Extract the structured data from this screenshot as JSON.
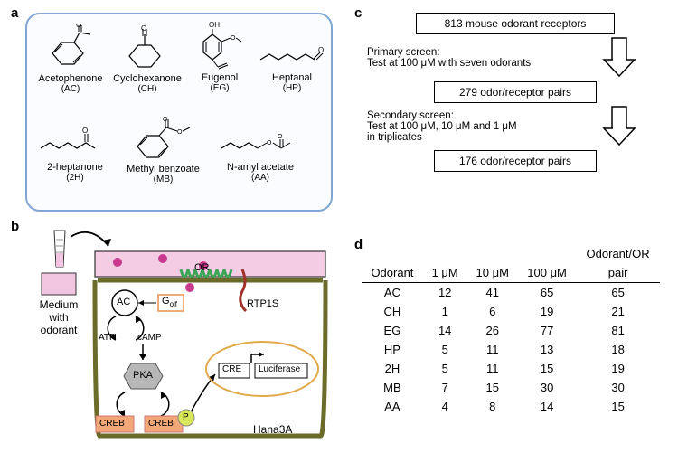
{
  "labels": {
    "a": "a",
    "b": "b",
    "c": "c",
    "d": "d"
  },
  "panelA": {
    "border_color": "#7fa6d4",
    "molecules": [
      {
        "name": "Acetophenone",
        "abbr": "(AC)"
      },
      {
        "name": "Cyclohexanone",
        "abbr": "(CH)"
      },
      {
        "name": "Eugenol",
        "abbr": "(EG)"
      },
      {
        "name": "Heptanal",
        "abbr": "(HP)"
      },
      {
        "name": "2-heptanone",
        "abbr": "(2H)"
      },
      {
        "name": "Methyl benzoate",
        "abbr": "(MB)"
      },
      {
        "name": "N-amyl acetate",
        "abbr": "(AA)"
      }
    ]
  },
  "panelB": {
    "medium_label_l1": "Medium",
    "medium_label_l2": "with",
    "medium_label_l3": "odorant",
    "or": "OR",
    "golf": "G",
    "golf_sub": "olf",
    "ac": "AC",
    "atp": "ATP",
    "camp": "cAMP",
    "pka": "PKA",
    "creb": "CREB",
    "p": "P",
    "rtp1s": "RTP1S",
    "cre": "CRE",
    "luc": "Luciferase",
    "hana": "Hana3A",
    "colors": {
      "medium": "#f4cde4",
      "odorant": "#c93a8f",
      "cell_border": "#6b6b2a",
      "or_receptor": "#3aa655",
      "rtp1s": "#a0322c",
      "golf_box": "#e8914e",
      "pka_fill": "#b7b7b7",
      "creb_fill": "#f2a778",
      "p_fill": "#d9e85a",
      "luc_ring": "#e0a94a"
    }
  },
  "panelC": {
    "box1": "813 mouse odorant receptors",
    "side1_l1": "Primary screen:",
    "side1_l2": "Test at 100 μM with seven odorants",
    "box2": "279 odor/receptor pairs",
    "side2_l1": "Secondary screen:",
    "side2_l2": "Test at 100 μM, 10 μM and 1 μM",
    "side2_l3": "in triplicates",
    "box3": "176 odor/receptor pairs"
  },
  "panelD": {
    "headers": {
      "odorant": "Odorant",
      "c1": "1 μM",
      "c10": "10 μM",
      "c100": "100 μM",
      "pair_l1": "Odorant/OR",
      "pair_l2": "pair"
    },
    "rows": [
      {
        "odorant": "AC",
        "c1": "12",
        "c10": "41",
        "c100": "65",
        "pair": "65"
      },
      {
        "odorant": "CH",
        "c1": "1",
        "c10": "6",
        "c100": "19",
        "pair": "21"
      },
      {
        "odorant": "EG",
        "c1": "14",
        "c10": "26",
        "c100": "77",
        "pair": "81"
      },
      {
        "odorant": "HP",
        "c1": "5",
        "c10": "11",
        "c100": "13",
        "pair": "18"
      },
      {
        "odorant": "2H",
        "c1": "5",
        "c10": "11",
        "c100": "15",
        "pair": "19"
      },
      {
        "odorant": "MB",
        "c1": "7",
        "c10": "15",
        "c100": "30",
        "pair": "30"
      },
      {
        "odorant": "AA",
        "c1": "4",
        "c10": "8",
        "c100": "14",
        "pair": "15"
      }
    ]
  }
}
